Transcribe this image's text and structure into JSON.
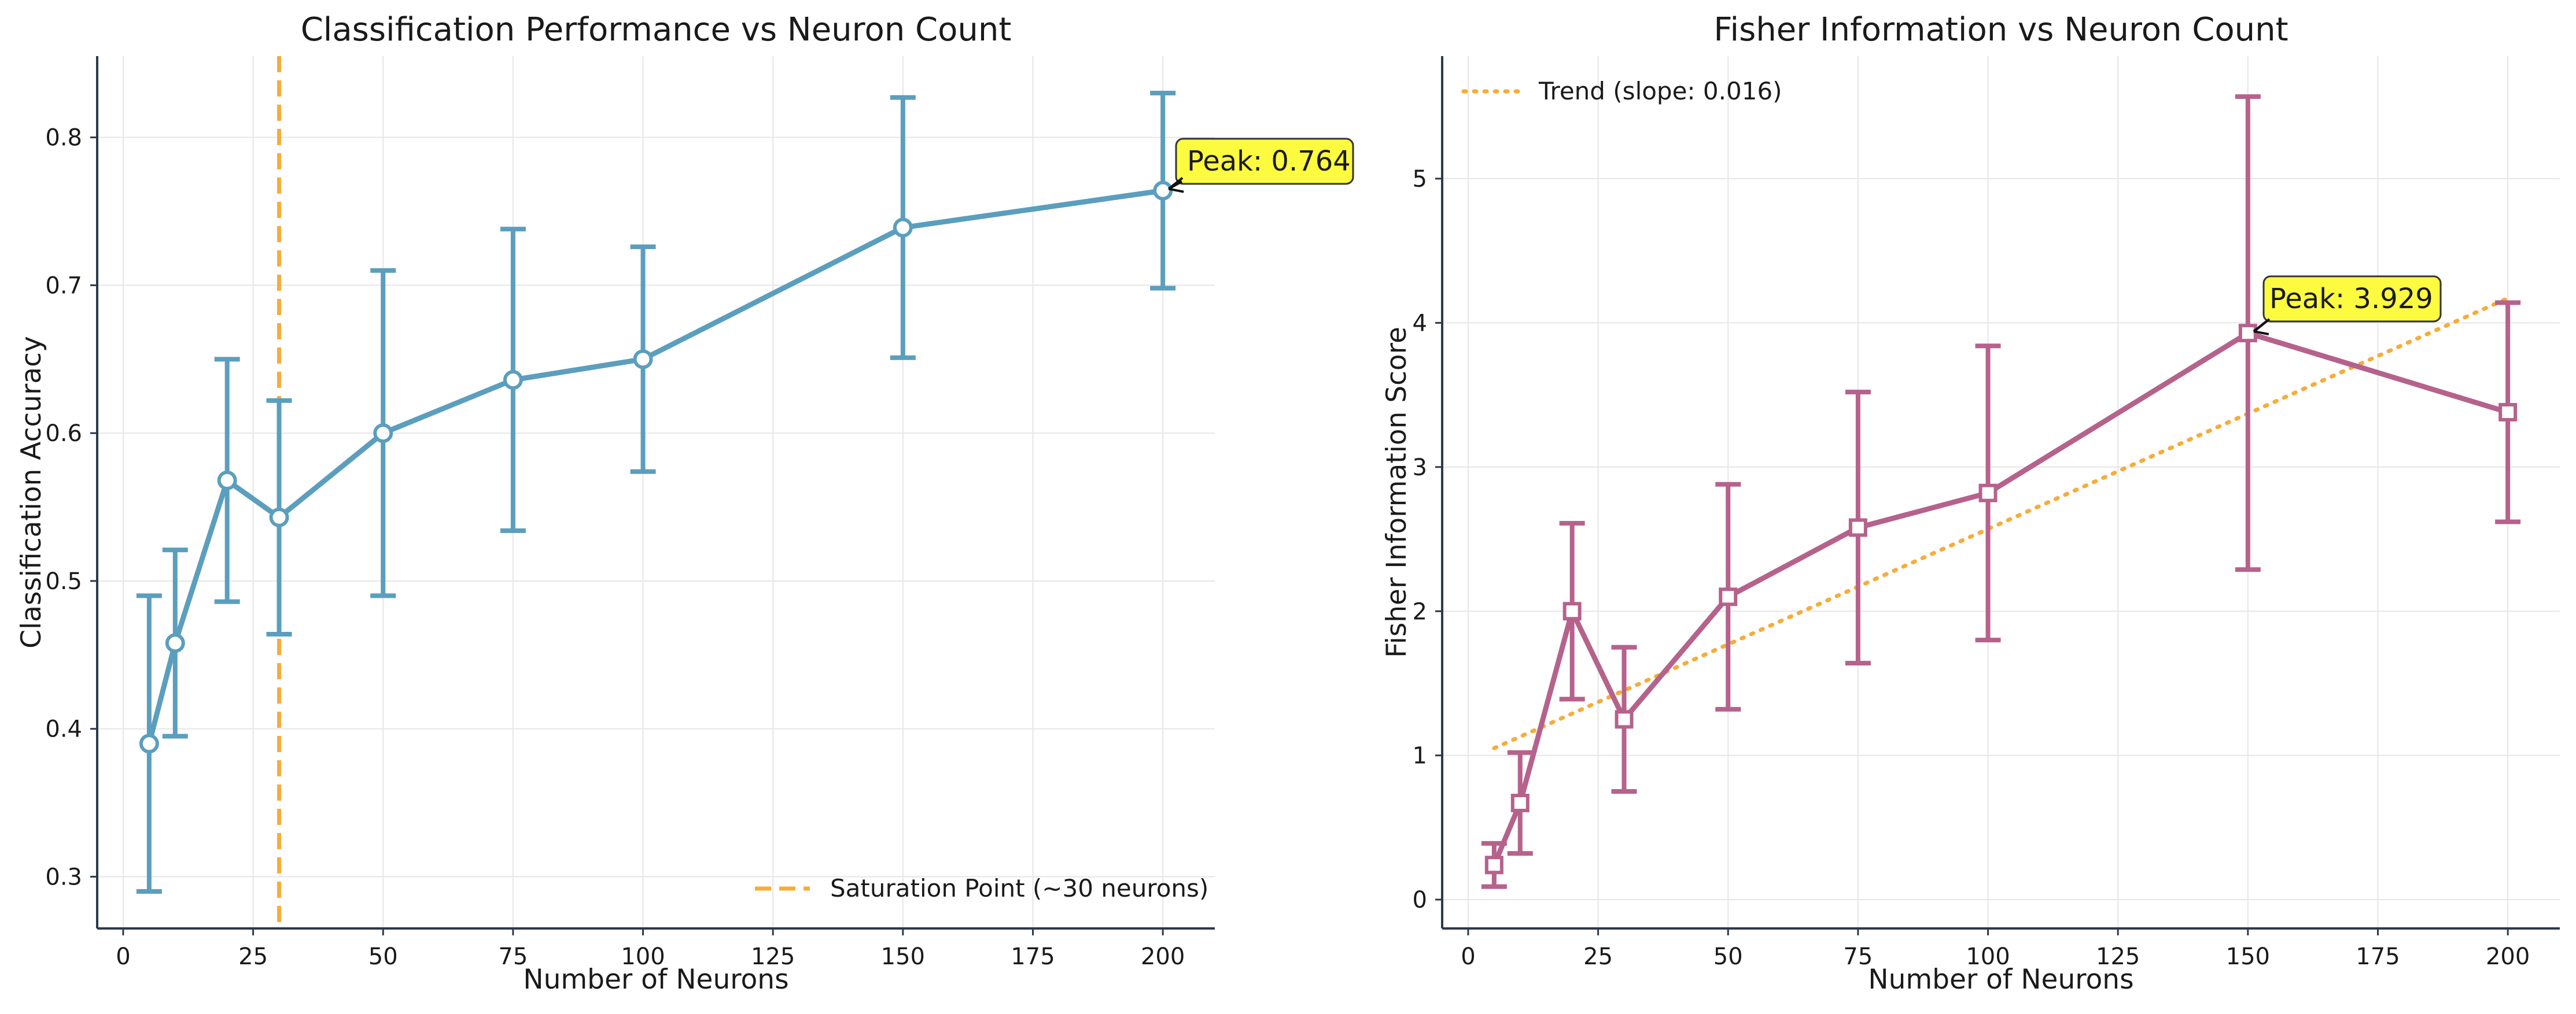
{
  "chart_data": [
    {
      "type": "line",
      "title": "Classification Performance vs Neuron Count",
      "xlabel": "Number of Neurons",
      "ylabel": "Classification Accuracy",
      "xlim": [
        -5,
        210
      ],
      "ylim": [
        0.265,
        0.855
      ],
      "xticks": [
        0,
        25,
        50,
        75,
        100,
        125,
        150,
        175,
        200
      ],
      "yticks": [
        0.3,
        0.4,
        0.5,
        0.6,
        0.7,
        0.8
      ],
      "grid": true,
      "legend": {
        "placement": "lower-right",
        "entries": [
          "Saturation Point (~30 neurons)"
        ]
      },
      "series": [
        {
          "x": [
            5,
            10,
            20,
            30,
            50,
            75,
            100,
            150,
            200
          ],
          "y": [
            0.39,
            0.458,
            0.568,
            0.543,
            0.6,
            0.636,
            0.65,
            0.739,
            0.764
          ],
          "yerr": [
            0.1,
            0.063,
            0.082,
            0.079,
            0.11,
            0.102,
            0.076,
            0.088,
            0.066
          ],
          "color": "#5b9ebd",
          "marker": "circle"
        }
      ],
      "vline": {
        "x": 30,
        "label": "Saturation Point (~30 neurons)",
        "color": "#f5ad3a",
        "style": "dashed"
      },
      "annotations": [
        {
          "text": "Peak: 0.764",
          "x": 200,
          "y": 0.764
        }
      ]
    },
    {
      "type": "line",
      "title": "Fisher Information vs Neuron Count",
      "xlabel": "Number of Neurons",
      "ylabel": "Fisher Information Score",
      "xlim": [
        -5,
        210
      ],
      "ylim": [
        -0.2,
        5.85
      ],
      "xticks": [
        0,
        25,
        50,
        75,
        100,
        125,
        150,
        175,
        200
      ],
      "yticks": [
        0,
        1,
        2,
        3,
        4,
        5
      ],
      "grid": true,
      "legend": {
        "placement": "upper-left",
        "entries": [
          "Trend (slope: 0.016)"
        ]
      },
      "series": [
        {
          "x": [
            5,
            10,
            20,
            30,
            50,
            75,
            100,
            150,
            200
          ],
          "y": [
            0.24,
            0.67,
            2.0,
            1.25,
            2.1,
            2.58,
            2.82,
            3.929,
            3.38
          ],
          "yerr": [
            0.15,
            0.35,
            0.61,
            0.5,
            0.78,
            0.94,
            1.02,
            1.64,
            0.76
          ],
          "color": "#b5628c",
          "marker": "square"
        }
      ],
      "trend": {
        "label": "Trend (slope: 0.016)",
        "slope": 0.016,
        "x_range": [
          5,
          200
        ],
        "y_range": [
          1.05,
          4.17
        ],
        "color": "#f5ad3a",
        "style": "dotted"
      },
      "annotations": [
        {
          "text": "Peak: 3.929",
          "x": 150,
          "y": 3.929
        }
      ]
    }
  ]
}
